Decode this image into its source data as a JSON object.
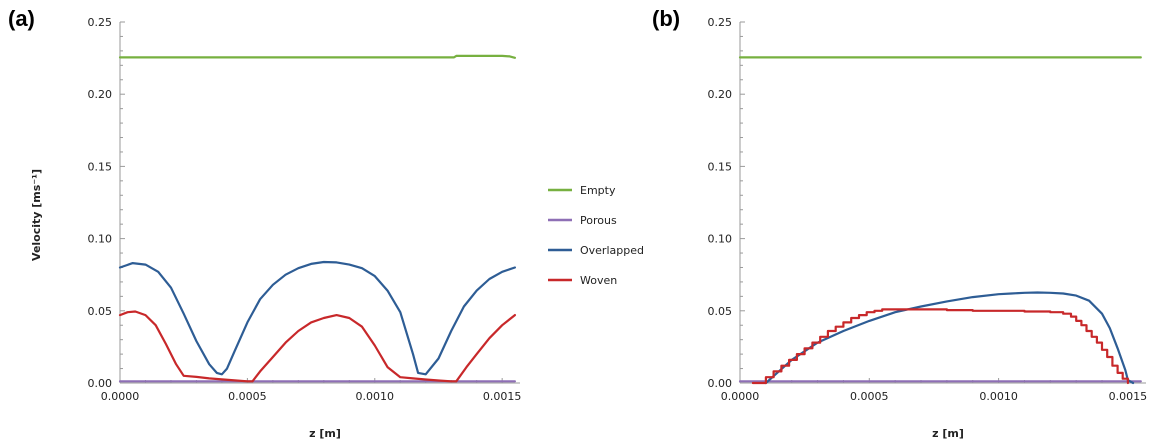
{
  "chart_data": [
    {
      "type": "line",
      "panel_label": "(a)",
      "xlabel": "z [m]",
      "ylabel": "Velocity [ms⁻¹]",
      "xlim": [
        0,
        0.00157
      ],
      "ylim": [
        0,
        0.25
      ],
      "x_ticks": [
        "0.0000",
        "0.0005",
        "0.0010",
        "0.0015"
      ],
      "x_tick_values": [
        0,
        0.0005,
        0.001,
        0.0015
      ],
      "y_ticks": [
        "0.00",
        "0.05",
        "0.10",
        "0.15",
        "0.20",
        "0.25"
      ],
      "y_tick_values": [
        0,
        0.05,
        0.1,
        0.15,
        0.2,
        0.25
      ],
      "grid": false,
      "legend_position": "right",
      "series": [
        {
          "name": "Empty",
          "color": "#77b040",
          "x": [
            0,
            0.0003,
            0.0006,
            0.0009,
            0.0012,
            0.00131,
            0.00132,
            0.0014,
            0.0015,
            0.00153,
            0.00155
          ],
          "y": [
            0.2255,
            0.2255,
            0.2255,
            0.2255,
            0.2255,
            0.2255,
            0.2265,
            0.2265,
            0.2265,
            0.2262,
            0.2252
          ]
        },
        {
          "name": "Porous",
          "color": "#8e6fb5",
          "x": [
            0,
            0.00155
          ],
          "y": [
            0.0012,
            0.0012
          ]
        },
        {
          "name": "Overlapped",
          "color": "#2e5d95",
          "x": [
            0,
            5e-05,
            0.0001,
            0.00015,
            0.0002,
            0.00025,
            0.0003,
            0.00035,
            0.00038,
            0.0004,
            0.00042,
            0.00045,
            0.0005,
            0.00055,
            0.0006,
            0.00065,
            0.0007,
            0.00075,
            0.0008,
            0.00085,
            0.0009,
            0.00095,
            0.001,
            0.00105,
            0.0011,
            0.00115,
            0.00117,
            0.0012,
            0.00125,
            0.0013,
            0.00135,
            0.0014,
            0.00145,
            0.0015,
            0.00155
          ],
          "y": [
            0.08,
            0.083,
            0.082,
            0.077,
            0.066,
            0.048,
            0.029,
            0.013,
            0.007,
            0.006,
            0.01,
            0.022,
            0.042,
            0.058,
            0.068,
            0.075,
            0.0795,
            0.0825,
            0.0838,
            0.0835,
            0.082,
            0.0795,
            0.074,
            0.064,
            0.049,
            0.02,
            0.007,
            0.006,
            0.017,
            0.036,
            0.053,
            0.064,
            0.072,
            0.077,
            0.08
          ]
        },
        {
          "name": "Woven",
          "color": "#c8282a",
          "x": [
            0,
            3e-05,
            6e-05,
            0.0001,
            0.00014,
            0.00018,
            0.00022,
            0.00025,
            0.0003,
            0.00035,
            0.0004,
            0.00045,
            0.0005,
            0.00052,
            0.00055,
            0.0006,
            0.00065,
            0.0007,
            0.00075,
            0.0008,
            0.00085,
            0.0009,
            0.00095,
            0.001,
            0.00105,
            0.0011,
            0.00115,
            0.0012,
            0.00125,
            0.0013,
            0.00132,
            0.00136,
            0.0014,
            0.00145,
            0.0015,
            0.00155
          ],
          "y": [
            0.047,
            0.049,
            0.0495,
            0.047,
            0.04,
            0.027,
            0.013,
            0.005,
            0.0042,
            0.0032,
            0.0025,
            0.0018,
            0.0012,
            0.0012,
            0.008,
            0.018,
            0.028,
            0.036,
            0.042,
            0.045,
            0.047,
            0.045,
            0.039,
            0.026,
            0.011,
            0.004,
            0.0032,
            0.0024,
            0.0017,
            0.0012,
            0.0012,
            0.011,
            0.02,
            0.031,
            0.04,
            0.047
          ]
        }
      ]
    },
    {
      "type": "line",
      "panel_label": "(b)",
      "xlabel": "z [m]",
      "ylabel": "",
      "xlim": [
        0,
        0.00157
      ],
      "ylim": [
        0,
        0.25
      ],
      "x_ticks": [
        "0.0000",
        "0.0005",
        "0.0010",
        "0.0015"
      ],
      "x_tick_values": [
        0,
        0.0005,
        0.001,
        0.0015
      ],
      "y_ticks": [
        "0.00",
        "0.05",
        "0.10",
        "0.15",
        "0.20",
        "0.25"
      ],
      "y_tick_values": [
        0,
        0.05,
        0.1,
        0.15,
        0.2,
        0.25
      ],
      "grid": false,
      "series": [
        {
          "color": "#77b040",
          "x": [
            0,
            0.00155
          ],
          "y": [
            0.2255,
            0.2255
          ]
        },
        {
          "color": "#8e6fb5",
          "x": [
            0,
            0.00155
          ],
          "y": [
            0.0012,
            0.0012
          ]
        },
        {
          "color": "#2e5d95",
          "x": [
            0.0001,
            0.00015,
            0.0002,
            0.0003,
            0.0004,
            0.0005,
            0.0006,
            0.0007,
            0.0008,
            0.0009,
            0.001,
            0.00105,
            0.0011,
            0.00115,
            0.0012,
            0.00125,
            0.0013,
            0.00135,
            0.0014,
            0.00143,
            0.00146,
            0.00149,
            0.0015,
            0.00152
          ],
          "y": [
            0,
            0.008,
            0.016,
            0.028,
            0.036,
            0.043,
            0.049,
            0.053,
            0.0565,
            0.0595,
            0.0615,
            0.062,
            0.0625,
            0.0627,
            0.0625,
            0.062,
            0.0605,
            0.057,
            0.048,
            0.038,
            0.024,
            0.009,
            0.002,
            0
          ]
        },
        {
          "color": "#c8282a",
          "step": true,
          "x": [
            5e-05,
            0.0001,
            0.00013,
            0.00016,
            0.00019,
            0.00022,
            0.00025,
            0.00028,
            0.00031,
            0.00034,
            0.00037,
            0.0004,
            0.00043,
            0.00046,
            0.00049,
            0.00052,
            0.00055,
            0.0007,
            0.0008,
            0.0009,
            0.001,
            0.0011,
            0.0012,
            0.00125,
            0.00128,
            0.0013,
            0.00132,
            0.00134,
            0.00136,
            0.00138,
            0.0014,
            0.00142,
            0.00144,
            0.00146,
            0.00148,
            0.0015
          ],
          "y": [
            0,
            0.004,
            0.008,
            0.012,
            0.016,
            0.02,
            0.024,
            0.028,
            0.032,
            0.036,
            0.039,
            0.042,
            0.045,
            0.047,
            0.049,
            0.05,
            0.051,
            0.051,
            0.0505,
            0.05,
            0.05,
            0.0495,
            0.049,
            0.048,
            0.046,
            0.043,
            0.04,
            0.036,
            0.032,
            0.028,
            0.023,
            0.018,
            0.012,
            0.007,
            0.003,
            0
          ]
        }
      ]
    }
  ]
}
